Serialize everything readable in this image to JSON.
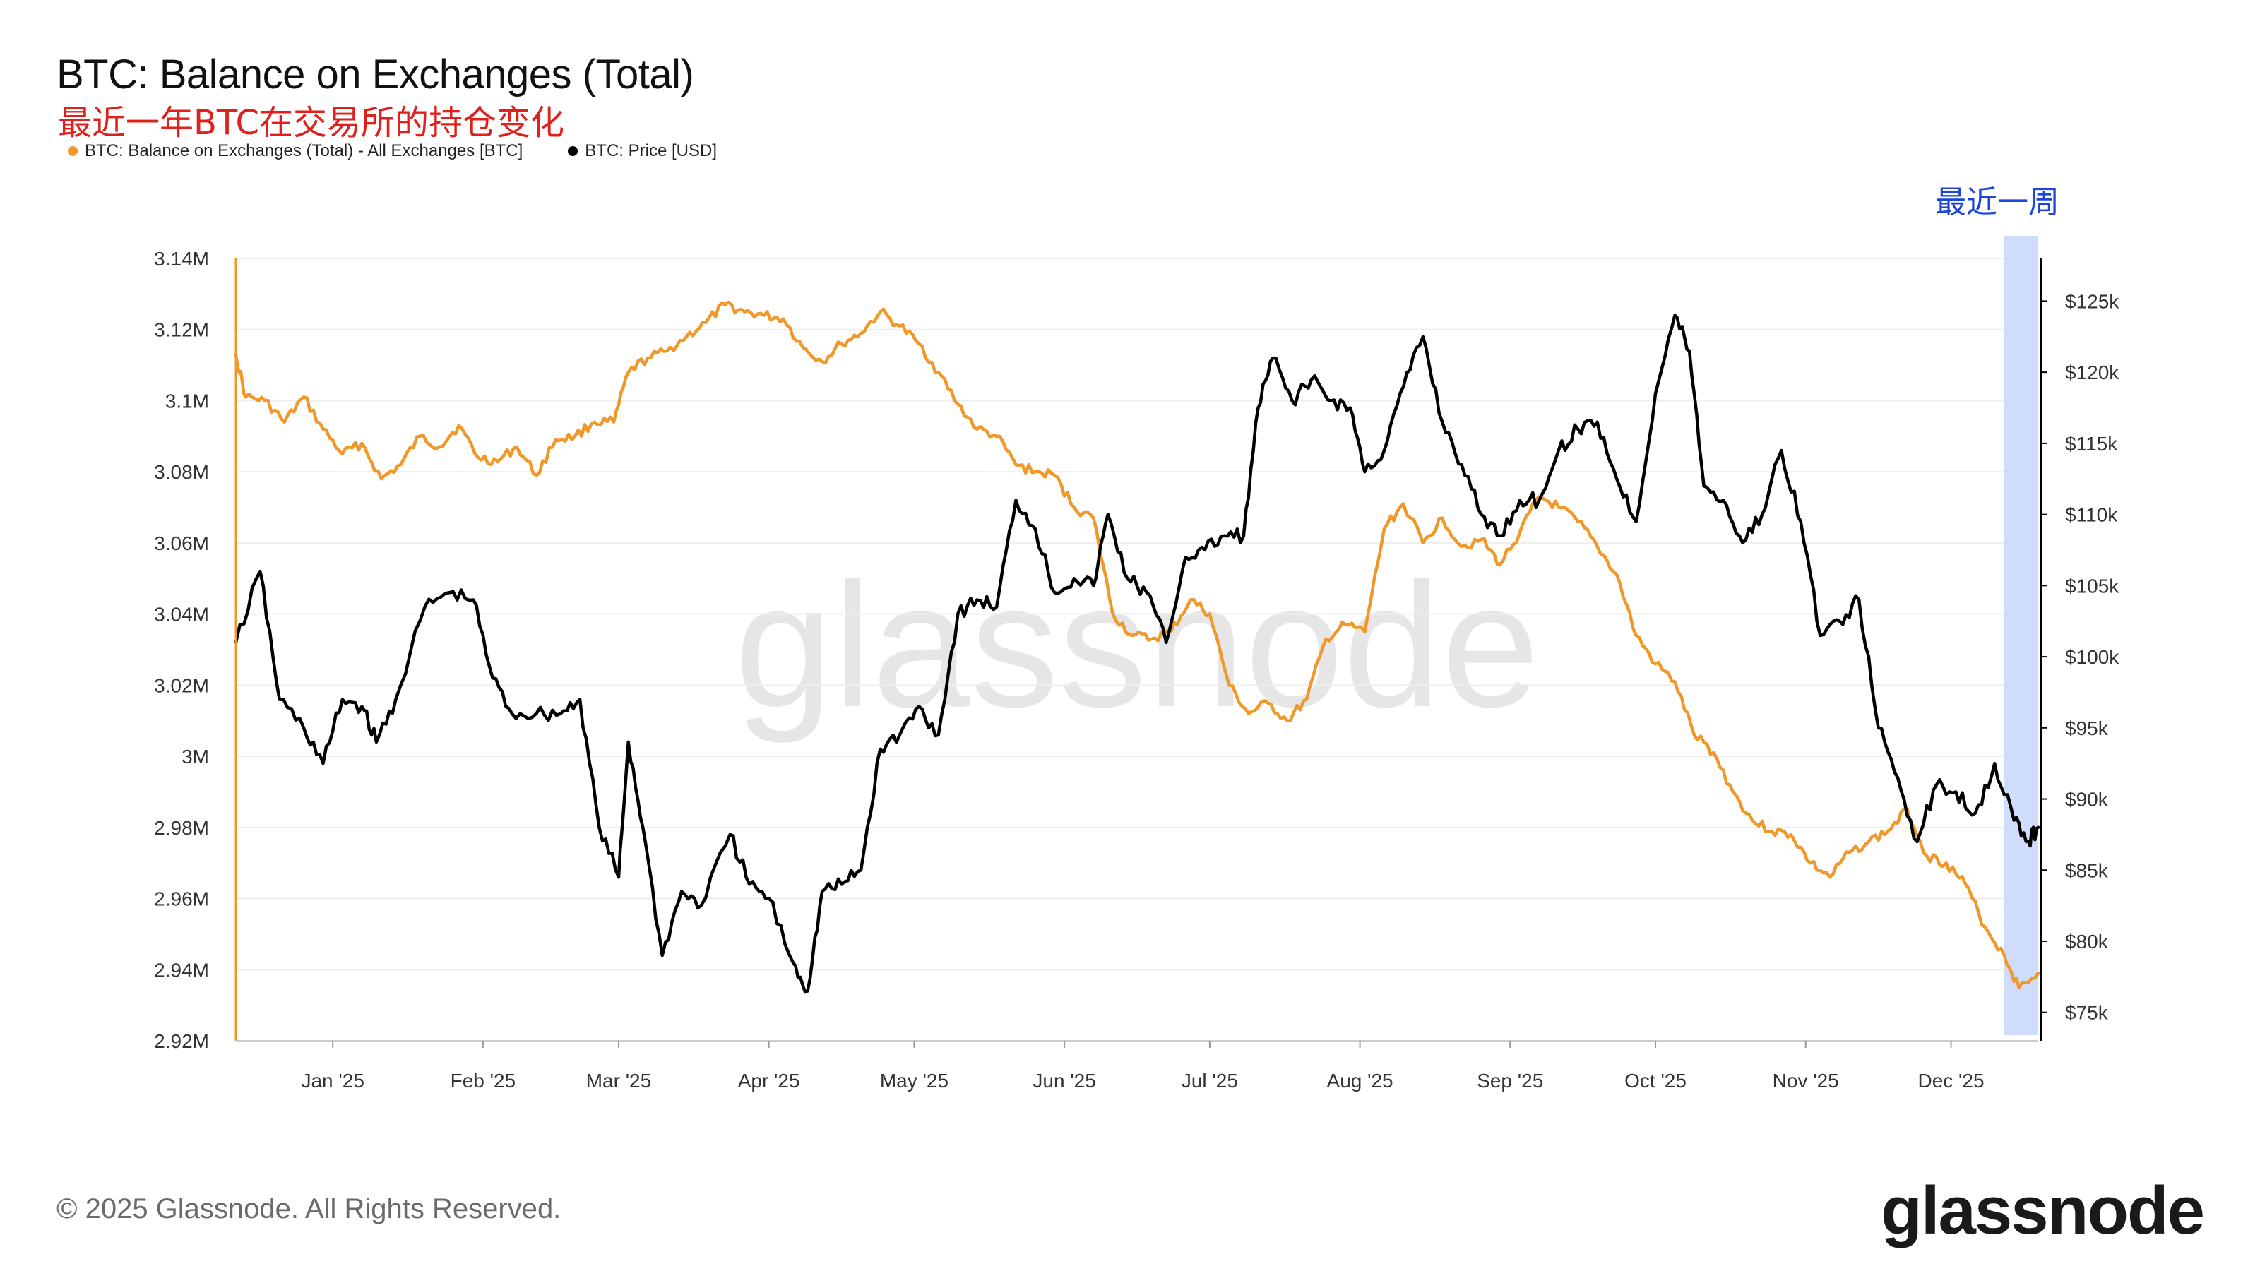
{
  "header": {
    "title": "BTC: Balance on Exchanges (Total)",
    "subtitle": "最近一年BTC在交易所的持仓变化"
  },
  "legend": [
    {
      "label": "BTC: Balance on Exchanges (Total) - All Exchanges [BTC]",
      "color": "#f0982a"
    },
    {
      "label": "BTC: Price [USD]",
      "color": "#000000"
    }
  ],
  "annotation": {
    "recent_week": "最近一周",
    "highlight_color": "#c8d6fa"
  },
  "watermark": "glassnode",
  "footer": {
    "copyright": "© 2025 Glassnode. All Rights Reserved.",
    "brand": "glassnode"
  },
  "chart_data": {
    "type": "line",
    "x_ticks": [
      "Jan '25",
      "Feb '25",
      "Mar '25",
      "Apr '25",
      "May '25",
      "Jun '25",
      "Jul '25",
      "Aug '25",
      "Sep '25",
      "Oct '25",
      "Nov '25",
      "Dec '25"
    ],
    "left_axis": {
      "range": [
        2.92,
        3.14
      ],
      "ticks": [
        "2.92M",
        "2.94M",
        "2.96M",
        "2.98M",
        "3M",
        "3.02M",
        "3.04M",
        "3.06M",
        "3.08M",
        "3.1M",
        "3.12M",
        "3.14M"
      ]
    },
    "right_axis": {
      "range": [
        73,
        128
      ],
      "ticks": [
        "$75k",
        "$80k",
        "$85k",
        "$90k",
        "$95k",
        "$100k",
        "$105k",
        "$110k",
        "$115k",
        "$120k",
        "$125k"
      ]
    },
    "highlight": {
      "from": "2025-12-12",
      "to": "2025-12-19"
    },
    "series": [
      {
        "name": "BTC: Balance on Exchanges (Total) - All Exchanges [BTC]",
        "axis": "left",
        "color": "#f0982a",
        "points": [
          [
            "2024-12-12",
            3.113
          ],
          [
            "2024-12-14",
            3.101
          ],
          [
            "2024-12-18",
            3.1
          ],
          [
            "2024-12-22",
            3.094
          ],
          [
            "2024-12-26",
            3.101
          ],
          [
            "2024-12-30",
            3.092
          ],
          [
            "2025-01-03",
            3.085
          ],
          [
            "2025-01-07",
            3.088
          ],
          [
            "2025-01-11",
            3.078
          ],
          [
            "2025-01-15",
            3.082
          ],
          [
            "2025-01-19",
            3.09
          ],
          [
            "2025-01-23",
            3.087
          ],
          [
            "2025-01-27",
            3.093
          ],
          [
            "2025-01-31",
            3.084
          ],
          [
            "2025-02-04",
            3.083
          ],
          [
            "2025-02-08",
            3.087
          ],
          [
            "2025-02-12",
            3.079
          ],
          [
            "2025-02-16",
            3.089
          ],
          [
            "2025-02-20",
            3.09
          ],
          [
            "2025-02-24",
            3.094
          ],
          [
            "2025-02-28",
            3.094
          ],
          [
            "2025-03-03",
            3.108
          ],
          [
            "2025-03-07",
            3.112
          ],
          [
            "2025-03-11",
            3.114
          ],
          [
            "2025-03-15",
            3.118
          ],
          [
            "2025-03-19",
            3.122
          ],
          [
            "2025-03-23",
            3.127
          ],
          [
            "2025-03-27",
            3.125
          ],
          [
            "2025-03-31",
            3.124
          ],
          [
            "2025-04-04",
            3.123
          ],
          [
            "2025-04-08",
            3.115
          ],
          [
            "2025-04-12",
            3.111
          ],
          [
            "2025-04-16",
            3.116
          ],
          [
            "2025-04-20",
            3.119
          ],
          [
            "2025-04-24",
            3.125
          ],
          [
            "2025-04-28",
            3.121
          ],
          [
            "2025-05-02",
            3.116
          ],
          [
            "2025-05-06",
            3.108
          ],
          [
            "2025-05-10",
            3.099
          ],
          [
            "2025-05-14",
            3.092
          ],
          [
            "2025-05-18",
            3.09
          ],
          [
            "2025-05-22",
            3.082
          ],
          [
            "2025-05-26",
            3.08
          ],
          [
            "2025-05-30",
            3.079
          ],
          [
            "2025-06-03",
            3.07
          ],
          [
            "2025-06-07",
            3.067
          ],
          [
            "2025-06-11",
            3.04
          ],
          [
            "2025-06-15",
            3.034
          ],
          [
            "2025-06-19",
            3.033
          ],
          [
            "2025-06-23",
            3.035
          ],
          [
            "2025-06-27",
            3.044
          ],
          [
            "2025-07-01",
            3.04
          ],
          [
            "2025-07-05",
            3.02
          ],
          [
            "2025-07-09",
            3.012
          ],
          [
            "2025-07-13",
            3.015
          ],
          [
            "2025-07-17",
            3.01
          ],
          [
            "2025-07-21",
            3.016
          ],
          [
            "2025-07-25",
            3.033
          ],
          [
            "2025-07-29",
            3.037
          ],
          [
            "2025-08-02",
            3.035
          ],
          [
            "2025-08-06",
            3.064
          ],
          [
            "2025-08-10",
            3.071
          ],
          [
            "2025-08-14",
            3.06
          ],
          [
            "2025-08-18",
            3.067
          ],
          [
            "2025-08-22",
            3.059
          ],
          [
            "2025-08-26",
            3.061
          ],
          [
            "2025-08-30",
            3.054
          ],
          [
            "2025-09-03",
            3.063
          ],
          [
            "2025-09-07",
            3.073
          ],
          [
            "2025-09-11",
            3.07
          ],
          [
            "2025-09-15",
            3.066
          ],
          [
            "2025-09-19",
            3.059
          ],
          [
            "2025-09-23",
            3.051
          ],
          [
            "2025-09-27",
            3.034
          ],
          [
            "2025-10-01",
            3.026
          ],
          [
            "2025-10-05",
            3.021
          ],
          [
            "2025-10-09",
            3.006
          ],
          [
            "2025-10-13",
            3.001
          ],
          [
            "2025-10-17",
            2.99
          ],
          [
            "2025-10-21",
            2.982
          ],
          [
            "2025-10-25",
            2.979
          ],
          [
            "2025-10-29",
            2.978
          ],
          [
            "2025-11-02",
            2.97
          ],
          [
            "2025-11-06",
            2.966
          ],
          [
            "2025-11-10",
            2.973
          ],
          [
            "2025-11-14",
            2.976
          ],
          [
            "2025-11-18",
            2.979
          ],
          [
            "2025-11-22",
            2.985
          ],
          [
            "2025-11-26",
            2.972
          ],
          [
            "2025-11-30",
            2.97
          ],
          [
            "2025-12-04",
            2.964
          ],
          [
            "2025-12-08",
            2.952
          ],
          [
            "2025-12-12",
            2.944
          ],
          [
            "2025-12-15",
            2.935
          ],
          [
            "2025-12-19",
            2.939
          ]
        ]
      },
      {
        "name": "BTC: Price [USD]",
        "axis": "right",
        "color": "#000000",
        "points": [
          [
            "2024-12-12",
            101.0
          ],
          [
            "2024-12-17",
            106.0
          ],
          [
            "2024-12-21",
            97.0
          ],
          [
            "2024-12-26",
            95.0
          ],
          [
            "2024-12-30",
            92.5
          ],
          [
            "2025-01-03",
            97.0
          ],
          [
            "2025-01-07",
            96.5
          ],
          [
            "2025-01-10",
            94.0
          ],
          [
            "2025-01-14",
            97.0
          ],
          [
            "2025-01-20",
            103.5
          ],
          [
            "2025-01-25",
            104.5
          ],
          [
            "2025-01-30",
            104.0
          ],
          [
            "2025-02-03",
            98.5
          ],
          [
            "2025-02-07",
            96.0
          ],
          [
            "2025-02-12",
            96.0
          ],
          [
            "2025-02-17",
            96.0
          ],
          [
            "2025-02-21",
            97.0
          ],
          [
            "2025-02-25",
            88.0
          ],
          [
            "2025-03-01",
            84.5
          ],
          [
            "2025-03-03",
            94.0
          ],
          [
            "2025-03-06",
            88.0
          ],
          [
            "2025-03-10",
            79.0
          ],
          [
            "2025-03-14",
            83.5
          ],
          [
            "2025-03-18",
            82.5
          ],
          [
            "2025-03-24",
            87.5
          ],
          [
            "2025-03-28",
            84.0
          ],
          [
            "2025-04-01",
            83.0
          ],
          [
            "2025-04-06",
            78.5
          ],
          [
            "2025-04-09",
            76.5
          ],
          [
            "2025-04-12",
            83.5
          ],
          [
            "2025-04-16",
            84.0
          ],
          [
            "2025-04-20",
            85.0
          ],
          [
            "2025-04-24",
            93.5
          ],
          [
            "2025-04-28",
            94.5
          ],
          [
            "2025-05-02",
            96.5
          ],
          [
            "2025-05-06",
            94.5
          ],
          [
            "2025-05-10",
            103.0
          ],
          [
            "2025-05-14",
            104.0
          ],
          [
            "2025-05-18",
            103.5
          ],
          [
            "2025-05-22",
            111.0
          ],
          [
            "2025-05-26",
            109.0
          ],
          [
            "2025-05-30",
            104.5
          ],
          [
            "2025-06-03",
            105.5
          ],
          [
            "2025-06-07",
            105.0
          ],
          [
            "2025-06-10",
            110.0
          ],
          [
            "2025-06-14",
            105.5
          ],
          [
            "2025-06-18",
            104.5
          ],
          [
            "2025-06-22",
            101.0
          ],
          [
            "2025-06-26",
            107.0
          ],
          [
            "2025-06-30",
            107.5
          ],
          [
            "2025-07-04",
            108.5
          ],
          [
            "2025-07-08",
            108.5
          ],
          [
            "2025-07-11",
            117.5
          ],
          [
            "2025-07-14",
            121.0
          ],
          [
            "2025-07-18",
            118.0
          ],
          [
            "2025-07-22",
            119.5
          ],
          [
            "2025-07-26",
            118.0
          ],
          [
            "2025-07-30",
            117.5
          ],
          [
            "2025-08-02",
            113.0
          ],
          [
            "2025-08-06",
            114.5
          ],
          [
            "2025-08-10",
            119.0
          ],
          [
            "2025-08-14",
            122.5
          ],
          [
            "2025-08-18",
            116.5
          ],
          [
            "2025-08-22",
            113.5
          ],
          [
            "2025-08-26",
            110.0
          ],
          [
            "2025-08-30",
            108.5
          ],
          [
            "2025-09-03",
            111.0
          ],
          [
            "2025-09-07",
            111.0
          ],
          [
            "2025-09-11",
            114.5
          ],
          [
            "2025-09-15",
            116.0
          ],
          [
            "2025-09-19",
            116.5
          ],
          [
            "2025-09-23",
            112.5
          ],
          [
            "2025-09-27",
            109.5
          ],
          [
            "2025-10-01",
            118.5
          ],
          [
            "2025-10-05",
            124.0
          ],
          [
            "2025-10-08",
            121.5
          ],
          [
            "2025-10-11",
            112.0
          ],
          [
            "2025-10-15",
            111.0
          ],
          [
            "2025-10-19",
            108.0
          ],
          [
            "2025-10-23",
            110.0
          ],
          [
            "2025-10-27",
            114.5
          ],
          [
            "2025-10-31",
            109.5
          ],
          [
            "2025-11-04",
            101.5
          ],
          [
            "2025-11-08",
            102.5
          ],
          [
            "2025-11-12",
            104.0
          ],
          [
            "2025-11-16",
            95.0
          ],
          [
            "2025-11-20",
            91.5
          ],
          [
            "2025-11-24",
            87.0
          ],
          [
            "2025-11-28",
            91.0
          ],
          [
            "2025-12-02",
            90.5
          ],
          [
            "2025-12-06",
            89.0
          ],
          [
            "2025-12-10",
            92.5
          ],
          [
            "2025-12-14",
            88.5
          ],
          [
            "2025-12-17",
            87.0
          ],
          [
            "2025-12-19",
            88.0
          ]
        ]
      }
    ]
  }
}
